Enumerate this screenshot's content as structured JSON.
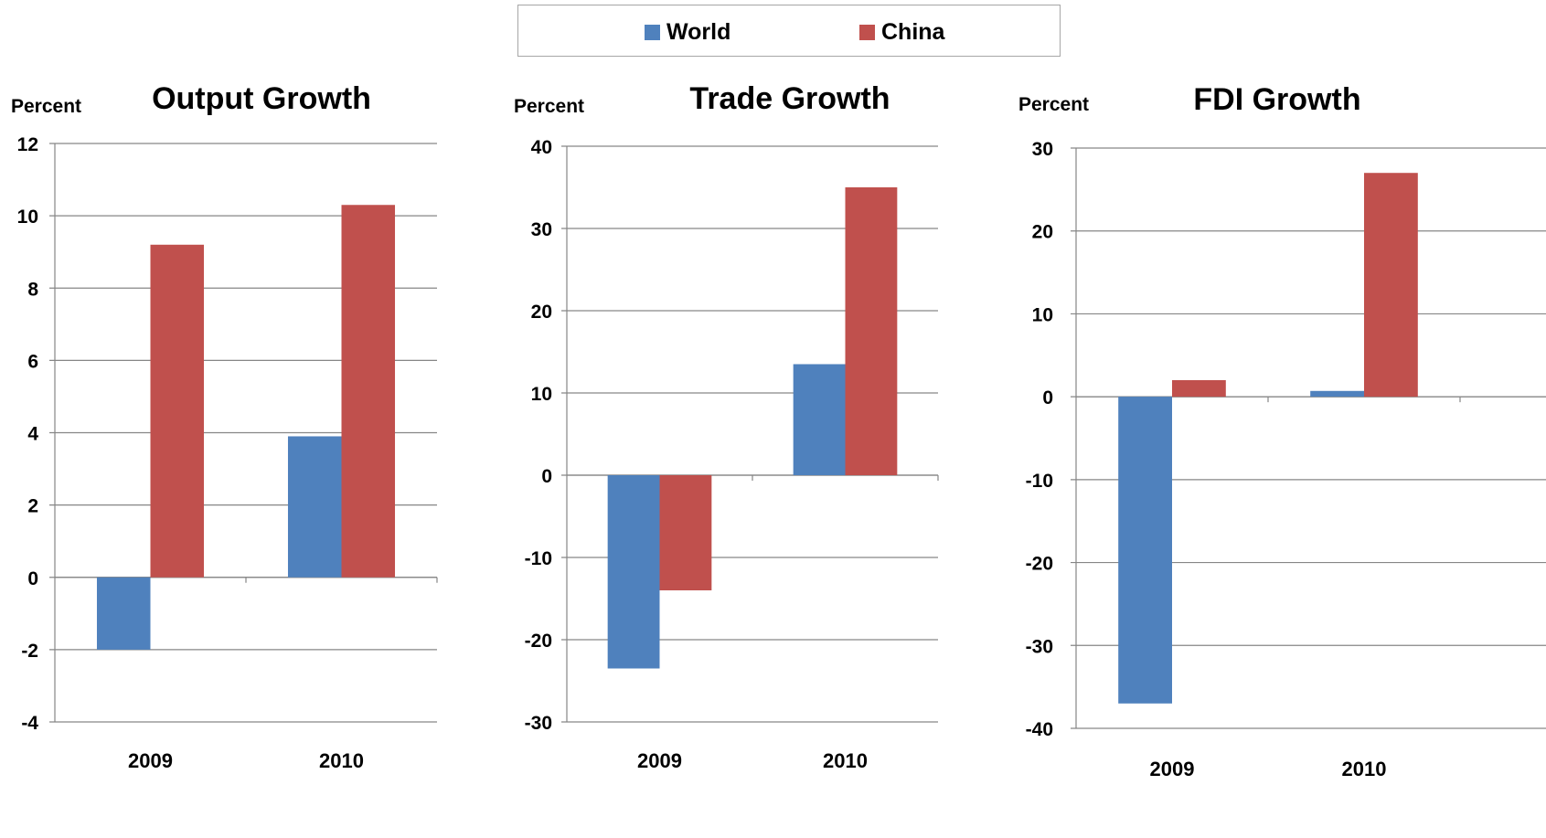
{
  "legend": {
    "items": [
      {
        "label": "World",
        "color": "#4f81bd"
      },
      {
        "label": "China",
        "color": "#c0504d"
      }
    ]
  },
  "chart_data": [
    {
      "type": "bar",
      "title": "Output Growth",
      "ylabel": "Percent",
      "categories": [
        "2009",
        "2010"
      ],
      "ylim": [
        -4,
        12
      ],
      "yticks": [
        -4,
        -2,
        0,
        2,
        4,
        6,
        8,
        10,
        12
      ],
      "grid": true,
      "series": [
        {
          "name": "World",
          "values": [
            -2.0,
            3.9
          ]
        },
        {
          "name": "China",
          "values": [
            9.2,
            10.3
          ]
        }
      ]
    },
    {
      "type": "bar",
      "title": "Trade Growth",
      "ylabel": "Percent",
      "categories": [
        "2009",
        "2010"
      ],
      "ylim": [
        -30,
        40
      ],
      "yticks": [
        -30,
        -20,
        -10,
        0,
        10,
        20,
        30,
        40
      ],
      "grid": true,
      "series": [
        {
          "name": "World",
          "values": [
            -23.5,
            13.5
          ]
        },
        {
          "name": "China",
          "values": [
            -14.0,
            35.0
          ]
        }
      ]
    },
    {
      "type": "bar",
      "title": "FDI Growth",
      "ylabel": "Percent",
      "categories": [
        "2009",
        "2010"
      ],
      "ylim": [
        -40,
        30
      ],
      "yticks": [
        -40,
        -30,
        -20,
        -10,
        0,
        10,
        20,
        30
      ],
      "grid": true,
      "series": [
        {
          "name": "World",
          "values": [
            -37.0,
            0.7
          ]
        },
        {
          "name": "China",
          "values": [
            2.0,
            27.0
          ]
        }
      ]
    }
  ]
}
